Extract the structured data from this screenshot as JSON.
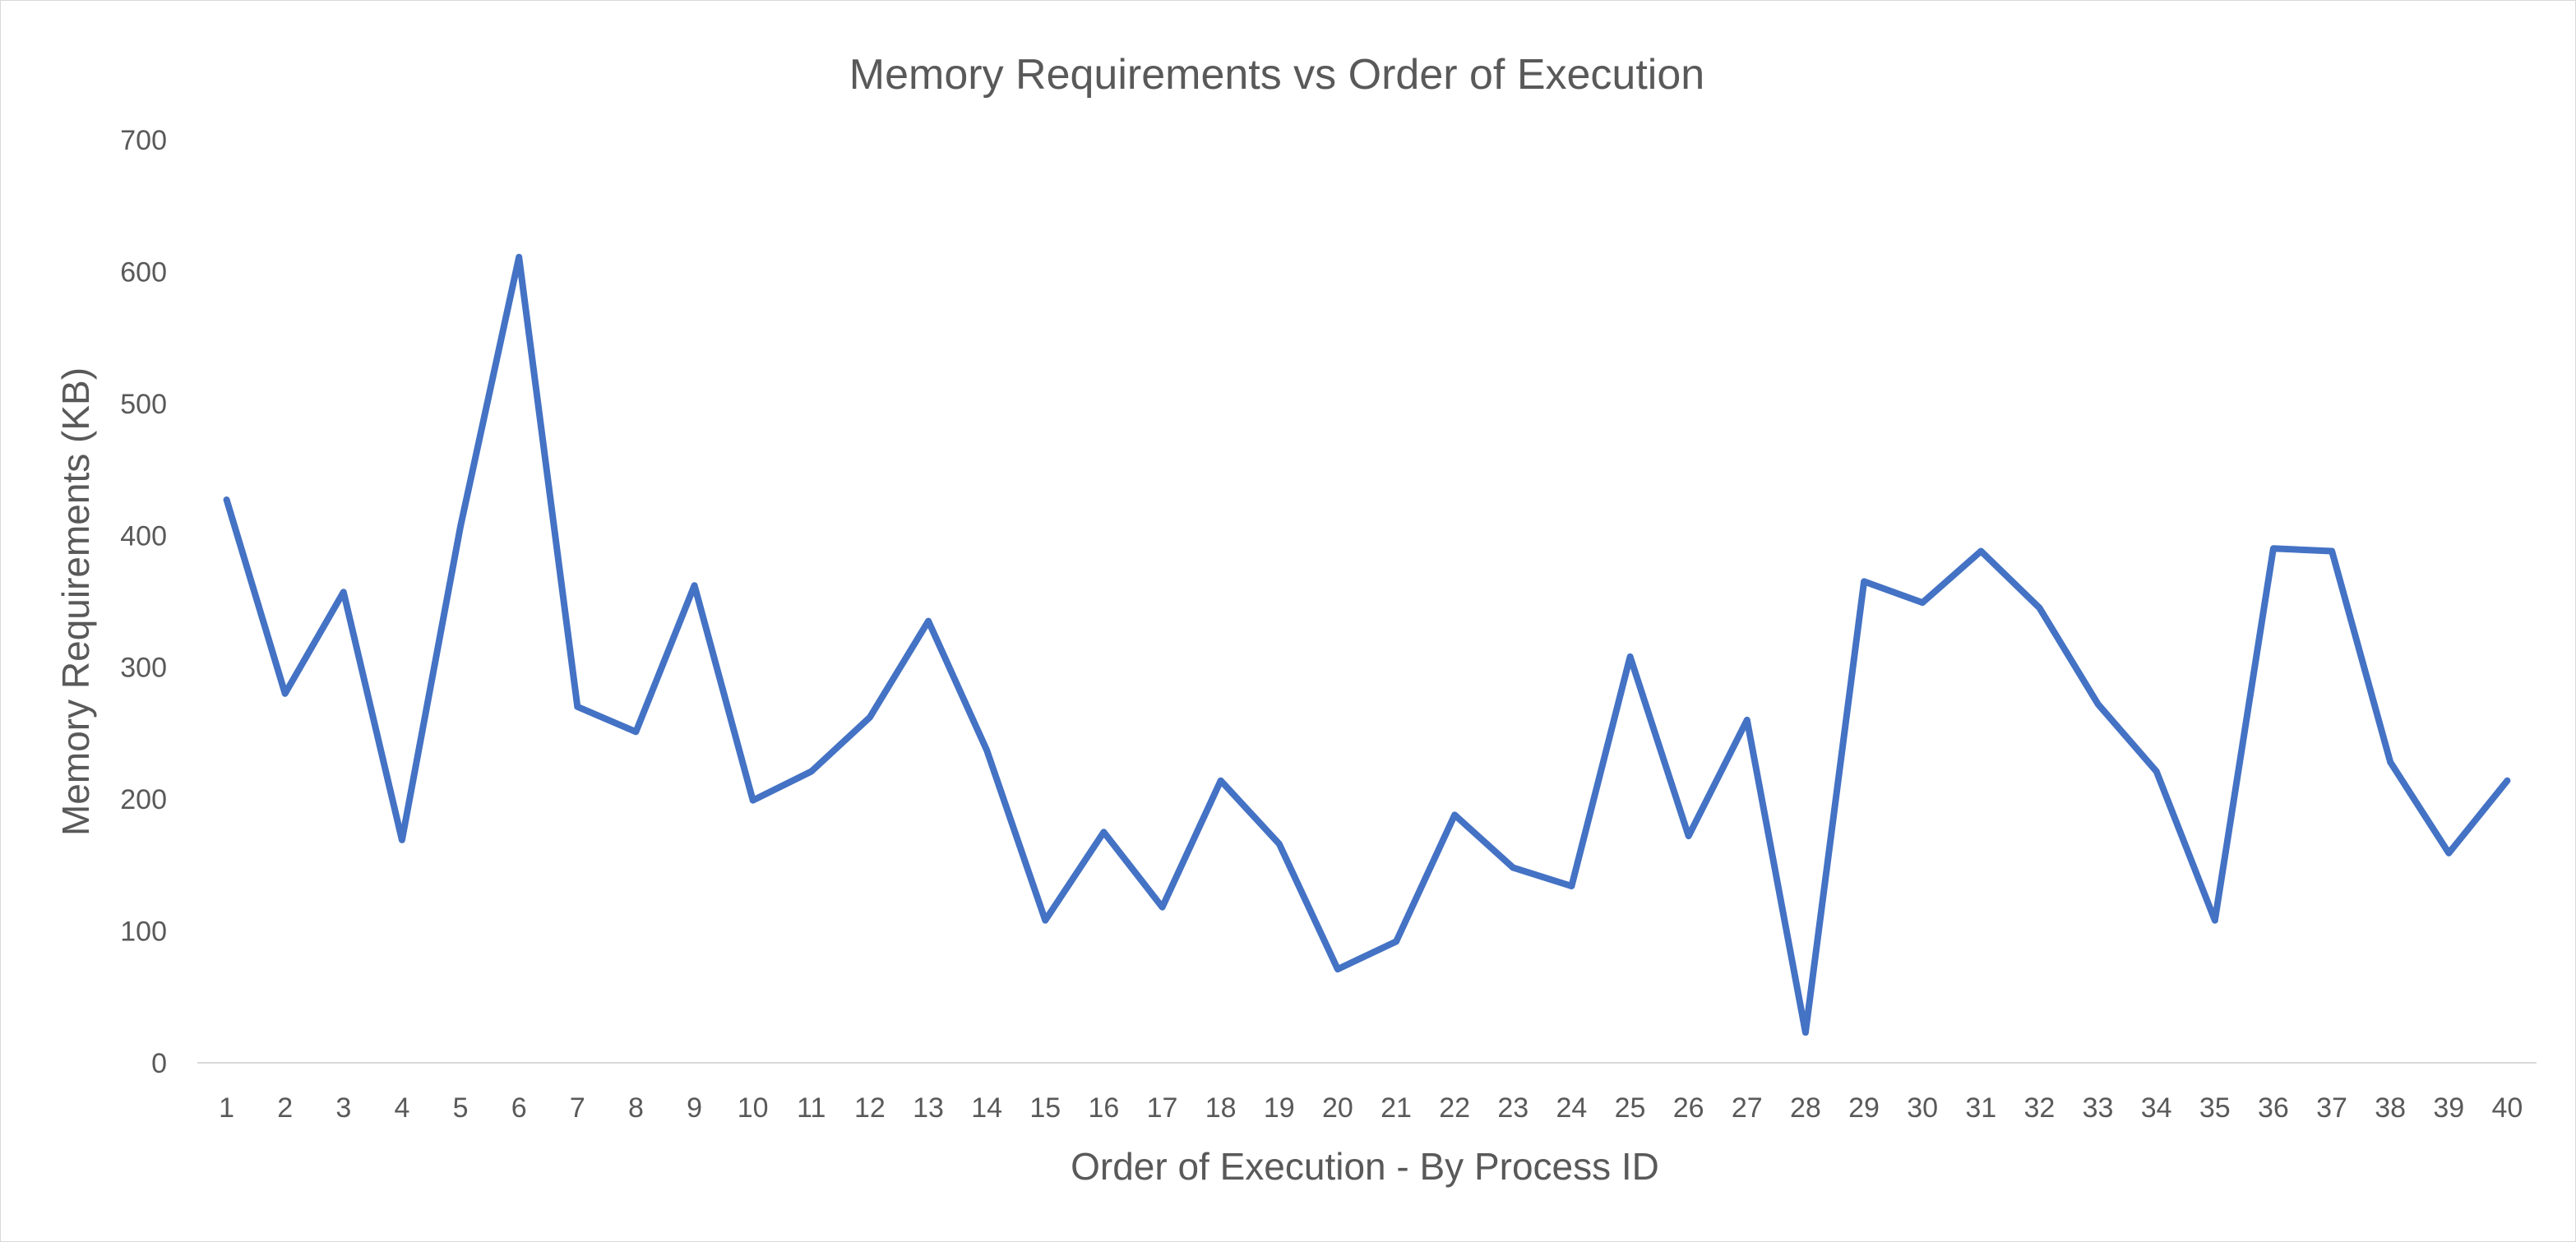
{
  "chart_data": {
    "type": "line",
    "title": "Memory Requirements vs Order of Execution",
    "xlabel": "Order of Execution - By Process ID",
    "ylabel": "Memory Requirements (KB)",
    "ylim": [
      0,
      700
    ],
    "yticks": [
      0,
      100,
      200,
      300,
      400,
      500,
      600,
      700
    ],
    "grid": false,
    "legend": "none",
    "categories": [
      "1",
      "2",
      "3",
      "4",
      "5",
      "6",
      "7",
      "8",
      "9",
      "10",
      "11",
      "12",
      "13",
      "14",
      "15",
      "16",
      "17",
      "18",
      "19",
      "20",
      "21",
      "22",
      "23",
      "24",
      "25",
      "26",
      "27",
      "28",
      "29",
      "30",
      "31",
      "32",
      "33",
      "34",
      "35",
      "36",
      "37",
      "38",
      "39",
      "40"
    ],
    "series": [
      {
        "color": "#4472c4",
        "values": [
          427,
          280,
          357,
          169,
          407,
          611,
          270,
          251,
          362,
          199,
          221,
          262,
          335,
          237,
          108,
          175,
          118,
          214,
          166,
          71,
          92,
          188,
          148,
          134,
          308,
          172,
          260,
          23,
          365,
          349,
          388,
          345,
          272,
          221,
          108,
          390,
          388,
          228,
          159,
          214
        ]
      }
    ]
  }
}
